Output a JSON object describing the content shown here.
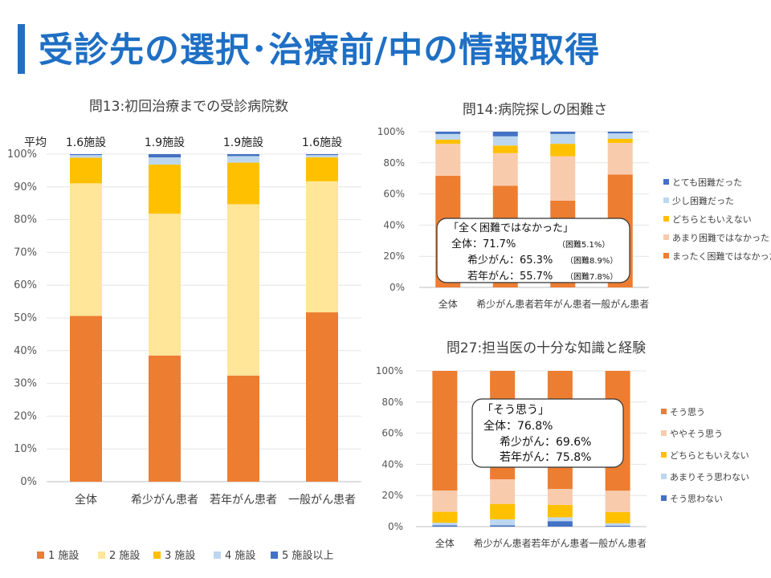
{
  "slide_title": "受診先の選択･治療前/中の情報取得",
  "colors": {
    "c1": "#ed7d31",
    "c2": "#ffe699",
    "c3": "#ffc000",
    "c4": "#bdd7ee",
    "c5": "#4472c4",
    "d2": "#f8cbad",
    "title": "#1f6fc4"
  },
  "chart_data": [
    {
      "id": "q13",
      "type": "bar",
      "stacked": true,
      "title": "問13:初回治療までの受診病院数",
      "categories": [
        "全体",
        "希少がん患者",
        "若年がん患者",
        "一般がん患者"
      ],
      "avg_label": "平均",
      "avg_values": [
        "1.6施設",
        "1.9施設",
        "1.9施設",
        "1.6施設"
      ],
      "ylim": [
        0,
        100
      ],
      "yticks": [
        "0%",
        "10%",
        "20%",
        "30%",
        "40%",
        "50%",
        "60%",
        "70%",
        "80%",
        "90%",
        "100%"
      ],
      "legend_position": "bottom",
      "series": [
        {
          "name": "1 施設",
          "color": "#ed7d31",
          "values": [
            50.6,
            38.5,
            32.4,
            51.7
          ]
        },
        {
          "name": "2 施設",
          "color": "#ffe699",
          "values": [
            40.5,
            43.3,
            52.3,
            40.0
          ]
        },
        {
          "name": "3 施設",
          "color": "#ffc000",
          "values": [
            7.8,
            15.0,
            12.7,
            7.3
          ]
        },
        {
          "name": "4 施設",
          "color": "#bdd7ee",
          "values": [
            0.8,
            2.2,
            2.0,
            0.7
          ]
        },
        {
          "name": "5 施設以上",
          "color": "#4472c4",
          "values": [
            0.3,
            1.0,
            0.6,
            0.3
          ]
        }
      ]
    },
    {
      "id": "q14",
      "type": "bar",
      "stacked": true,
      "title": "問14:病院探しの困難さ",
      "categories": [
        "全体",
        "希少がん患者",
        "若年がん患者",
        "一般がん患者"
      ],
      "ylim": [
        0,
        100
      ],
      "yticks": [
        "0%",
        "20%",
        "40%",
        "60%",
        "80%",
        "100%"
      ],
      "legend_position": "right",
      "series": [
        {
          "name": "まったく困難ではなかった",
          "color": "#ed7d31",
          "values": [
            71.7,
            65.3,
            55.7,
            72.5
          ]
        },
        {
          "name": "あまり困難ではなかった",
          "color": "#f8cbad",
          "values": [
            20.5,
            20.9,
            28.5,
            20.3
          ]
        },
        {
          "name": "どちらともいえない",
          "color": "#ffc000",
          "values": [
            2.7,
            4.9,
            8.0,
            2.6
          ]
        },
        {
          "name": "少し困難だった",
          "color": "#bdd7ee",
          "values": [
            3.6,
            5.9,
            6.3,
            3.5
          ]
        },
        {
          "name": "とても困難だった",
          "color": "#4472c4",
          "values": [
            1.5,
            3.0,
            1.5,
            1.1
          ]
        }
      ],
      "annotation": [
        "「全く困難ではなかった」",
        "全体：71.7%",
        "（困難5.1%）",
        "希少がん：65.3%",
        "（困難8.9%）",
        "若年がん：55.7%",
        "（困難7.8%）"
      ]
    },
    {
      "id": "q27",
      "type": "bar",
      "stacked": true,
      "title": "問27:担当医の十分な知識と経験",
      "categories": [
        "全体",
        "希少がん患者",
        "若年がん患者",
        "一般がん患者"
      ],
      "ylim": [
        0,
        100
      ],
      "yticks": [
        "0%",
        "20%",
        "40%",
        "60%",
        "80%",
        "100%"
      ],
      "legend_position": "right",
      "series": [
        {
          "name": "そう思わない",
          "color": "#4472c4",
          "values": [
            0.8,
            0.8,
            3.5,
            0.6
          ]
        },
        {
          "name": "あまりそう思わない",
          "color": "#bdd7ee",
          "values": [
            1.7,
            3.9,
            2.5,
            1.6
          ]
        },
        {
          "name": "どちらともいえない",
          "color": "#ffc000",
          "values": [
            7.0,
            9.9,
            8.0,
            7.2
          ]
        },
        {
          "name": "ややそう思う",
          "color": "#f8cbad",
          "values": [
            13.7,
            15.8,
            10.2,
            13.7
          ]
        },
        {
          "name": "そう思う",
          "color": "#ed7d31",
          "values": [
            76.8,
            69.6,
            75.8,
            76.9
          ]
        }
      ],
      "annotation": [
        "「そう思う」",
        "全体：76.8%",
        "希少がん：69.6%",
        "若年がん：75.8%"
      ]
    }
  ]
}
